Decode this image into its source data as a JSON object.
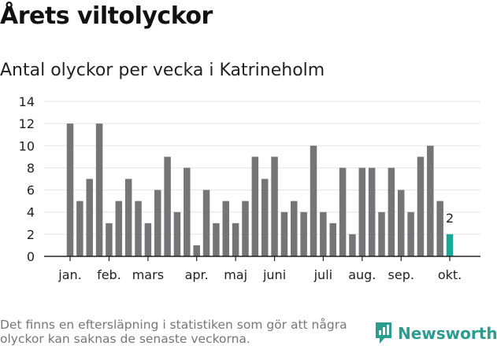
{
  "header": {
    "title": "Årets viltolyckor",
    "subtitle": "Antal olyckor per vecka i Katrineholm"
  },
  "footer": {
    "note": "Det finns en eftersläpning i statistiken som gör att några olyckor kan saknas de senaste veckorna.",
    "brand": "Newsworthy"
  },
  "colors": {
    "bar": "#757477",
    "highlight": "#19a89a",
    "grid": "#e3e3e3",
    "axis": "#222222",
    "brand": "#2a9d8f"
  },
  "chart_data": {
    "type": "bar",
    "title": "Antal olyckor per vecka i Katrineholm",
    "xlabel": "",
    "ylabel": "",
    "ylim": [
      0,
      14
    ],
    "yticks": [
      0,
      2,
      4,
      6,
      8,
      10,
      12,
      14
    ],
    "grid": true,
    "values": [
      12,
      5,
      7,
      12,
      3,
      5,
      7,
      5,
      3,
      6,
      9,
      4,
      8,
      1,
      6,
      3,
      5,
      3,
      5,
      9,
      7,
      9,
      4,
      5,
      4,
      10,
      4,
      3,
      8,
      2,
      8,
      8,
      4,
      8,
      6,
      4,
      9,
      10,
      5,
      2
    ],
    "highlight_index": 39,
    "highlight_label": "2",
    "months": [
      {
        "label": "jan.",
        "index": 0
      },
      {
        "label": "feb.",
        "index": 4
      },
      {
        "label": "mars",
        "index": 8
      },
      {
        "label": "apr.",
        "index": 13
      },
      {
        "label": "maj",
        "index": 17
      },
      {
        "label": "juni",
        "index": 21
      },
      {
        "label": "juli",
        "index": 26
      },
      {
        "label": "aug.",
        "index": 30
      },
      {
        "label": "sep.",
        "index": 34
      },
      {
        "label": "okt.",
        "index": 39
      }
    ]
  }
}
